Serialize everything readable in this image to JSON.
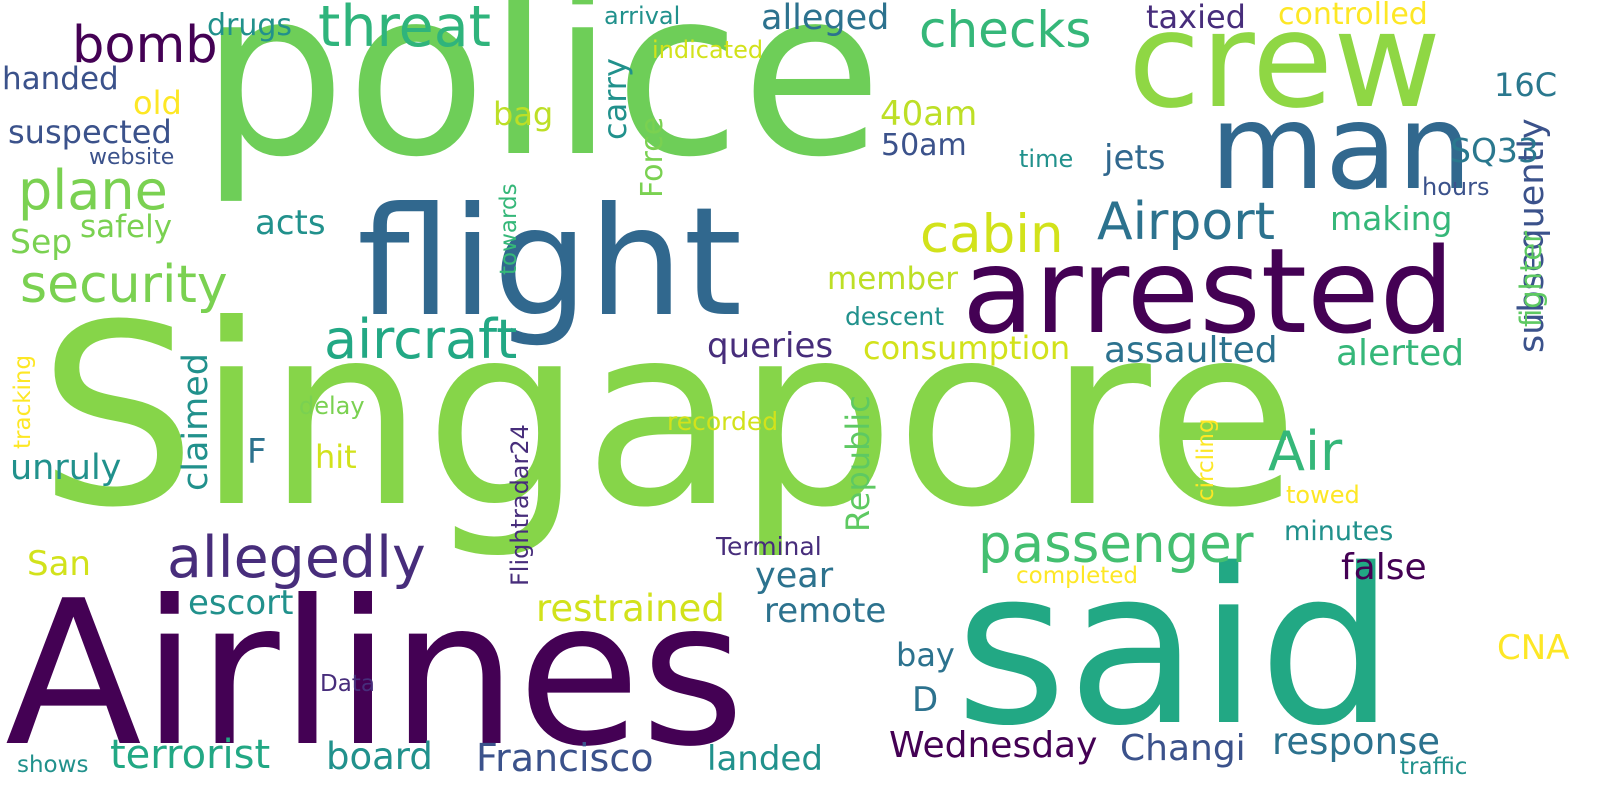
{
  "palette": {
    "dark_purple": "#440154",
    "indigo": "#472d7b",
    "slate_blue": "#3b528b",
    "steel_blue": "#2c728e",
    "teal_blue": "#21918c",
    "teal": "#28ae80",
    "green": "#5ec962",
    "light_green": "#7ad151",
    "lime": "#bddf26",
    "yellow": "#fde725"
  },
  "words": [
    {
      "text": "Singapore",
      "color": "#86d549"
    },
    {
      "text": "police",
      "color": "#6ece58"
    },
    {
      "text": "Airlines",
      "color": "#440154"
    },
    {
      "text": "said",
      "color": "#22a884"
    },
    {
      "text": "flight",
      "color": "#31688e"
    },
    {
      "text": "arrested",
      "color": "#440154"
    },
    {
      "text": "crew",
      "color": "#8fd744"
    },
    {
      "text": "man",
      "color": "#31688e"
    },
    {
      "text": "passenger",
      "color": "#44bf70"
    },
    {
      "text": "allegedly",
      "color": "#472d7b"
    },
    {
      "text": "aircraft",
      "color": "#22a884"
    },
    {
      "text": "threat",
      "color": "#2fb47c"
    },
    {
      "text": "Air",
      "color": "#35b779"
    },
    {
      "text": "Airport",
      "color": "#2c728e"
    },
    {
      "text": "security",
      "color": "#7ad151"
    },
    {
      "text": "plane",
      "color": "#7ad151"
    },
    {
      "text": "bomb",
      "color": "#440154"
    },
    {
      "text": "checks",
      "color": "#35b779"
    },
    {
      "text": "cabin",
      "color": "#d2e21b"
    },
    {
      "text": "Francisco",
      "color": "#3b528b"
    },
    {
      "text": "terrorist",
      "color": "#22a884"
    },
    {
      "text": "Wednesday",
      "color": "#440154"
    },
    {
      "text": "response",
      "color": "#2c728e"
    },
    {
      "text": "restrained",
      "color": "#d2e21b"
    },
    {
      "text": "board",
      "color": "#21918c"
    },
    {
      "text": "Changi",
      "color": "#3b528b"
    },
    {
      "text": "subsequently",
      "color": "#3b528b"
    },
    {
      "text": "alleged",
      "color": "#2c728e"
    },
    {
      "text": "assaulted",
      "color": "#2c728e"
    },
    {
      "text": "false",
      "color": "#440154"
    },
    {
      "text": "landed",
      "color": "#21918c"
    },
    {
      "text": "consumption",
      "color": "#d2e21b"
    },
    {
      "text": "queries",
      "color": "#472d7b"
    },
    {
      "text": "alerted",
      "color": "#35b779"
    },
    {
      "text": "claimed",
      "color": "#21918c"
    },
    {
      "text": "escort",
      "color": "#21918c"
    },
    {
      "text": "unruly",
      "color": "#21918c"
    },
    {
      "text": "remote",
      "color": "#2c728e"
    },
    {
      "text": "year",
      "color": "#2c728e"
    },
    {
      "text": "jets",
      "color": "#31688e"
    },
    {
      "text": "making",
      "color": "#35b779"
    },
    {
      "text": "Republic",
      "color": "#5ec962"
    },
    {
      "text": "member",
      "color": "#bddf26"
    },
    {
      "text": "suspected",
      "color": "#3b528b"
    },
    {
      "text": "controlled",
      "color": "#fde725"
    },
    {
      "text": "taxied",
      "color": "#472d7b"
    },
    {
      "text": "SQ33",
      "color": "#2a788e"
    },
    {
      "text": "carry",
      "color": "#21918c"
    },
    {
      "text": "40am",
      "color": "#bddf26"
    },
    {
      "text": "50am",
      "color": "#3b528b"
    },
    {
      "text": "acts",
      "color": "#21918c"
    },
    {
      "text": "drugs",
      "color": "#21918c"
    },
    {
      "text": "handed",
      "color": "#3b528b"
    },
    {
      "text": "Sep",
      "color": "#7ad151"
    },
    {
      "text": "safely",
      "color": "#7ad151"
    },
    {
      "text": "San",
      "color": "#d2e21b"
    },
    {
      "text": "hit",
      "color": "#d2e21b"
    },
    {
      "text": "bag",
      "color": "#bddf26"
    },
    {
      "text": "old",
      "color": "#fde725"
    },
    {
      "text": "Force",
      "color": "#7ad151"
    },
    {
      "text": "bay",
      "color": "#2c728e"
    },
    {
      "text": "16C",
      "color": "#2a788e"
    },
    {
      "text": "CNA",
      "color": "#fde725"
    },
    {
      "text": "F",
      "color": "#2c728e"
    },
    {
      "text": "D",
      "color": "#2c728e"
    },
    {
      "text": "fighter",
      "color": "#5ec962"
    },
    {
      "text": "minutes",
      "color": "#21918c"
    },
    {
      "text": "Terminal",
      "color": "#472d7b"
    },
    {
      "text": "descent",
      "color": "#21918c"
    },
    {
      "text": "recorded",
      "color": "#d2e21b"
    },
    {
      "text": "delay",
      "color": "#7ad151"
    },
    {
      "text": "towed",
      "color": "#fde725"
    },
    {
      "text": "completed",
      "color": "#fde725"
    },
    {
      "text": "indicated",
      "color": "#d2e21b"
    },
    {
      "text": "arrival",
      "color": "#21918c"
    },
    {
      "text": "website",
      "color": "#3b528b"
    },
    {
      "text": "time",
      "color": "#21918c"
    },
    {
      "text": "hours",
      "color": "#3b528b"
    },
    {
      "text": "towards",
      "color": "#35b779"
    },
    {
      "text": "Flightradar24",
      "color": "#472d7b"
    },
    {
      "text": "tracking",
      "color": "#fde725"
    },
    {
      "text": "circling",
      "color": "#fde725"
    },
    {
      "text": "Data",
      "color": "#472d7b"
    },
    {
      "text": "shows",
      "color": "#21918c"
    },
    {
      "text": "traffic",
      "color": "#21918c"
    }
  ]
}
